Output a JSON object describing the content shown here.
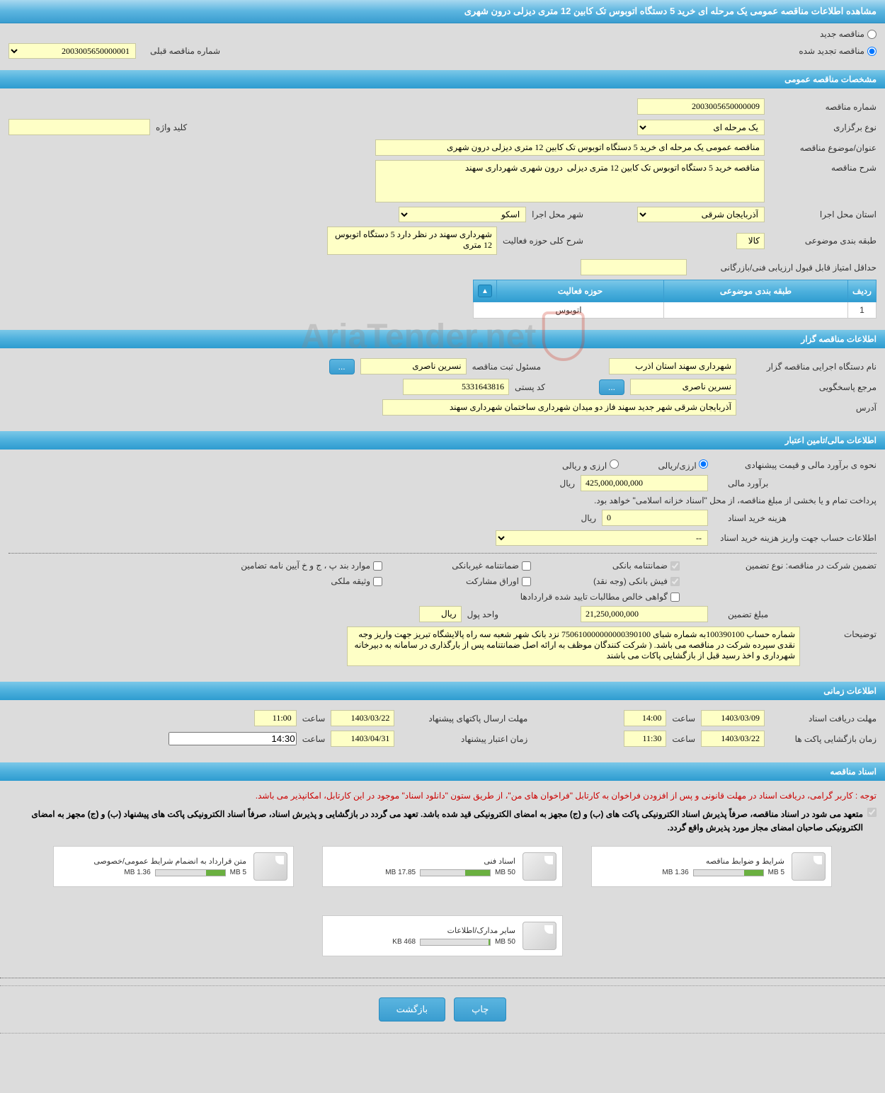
{
  "header": {
    "title": "مشاهده اطلاعات مناقصه عمومی یک مرحله ای خرید 5 دستگاه اتوبوس تک کابین 12 متری دیزلی درون شهری"
  },
  "tender_type": {
    "new_label": "مناقصه جدید",
    "renewed_label": "مناقصه تجدید شده",
    "prev_number_label": "شماره مناقصه قبلی",
    "prev_number": "2003005650000001"
  },
  "sections": {
    "general": "مشخصات مناقصه عمومی",
    "organizer": "اطلاعات مناقصه گزار",
    "financial": "اطلاعات مالی/تامین اعتبار",
    "time": "اطلاعات زمانی",
    "documents": "اسناد مناقصه",
    "activities_header": "حوزه های فعالیت"
  },
  "general": {
    "tender_no_label": "شماره مناقصه",
    "tender_no": "2003005650000009",
    "hold_type_label": "نوع برگزاری",
    "hold_type": "یک مرحله ای",
    "keyword_label": "کلید واژه",
    "keyword": "",
    "subject_label": "عنوان/موضوع مناقصه",
    "subject": "مناقصه عمومی یک مرحله ای خرید 5 دستگاه اتوبوس تک کابین 12 متری دیزلی درون شهری",
    "desc_label": "شرح مناقصه",
    "desc": "مناقصه خرید 5 دستگاه اتوبوس تک کابین 12 متری دیزلی  درون شهری شهرداری سهند",
    "province_label": "استان محل اجرا",
    "province": "آذربایجان شرقی",
    "city_label": "شهر محل اجرا",
    "city": "اسکو",
    "category_label": "طبقه بندی موضوعی",
    "category": "کالا",
    "activity_scope_label": "شرح کلی حوزه فعالیت",
    "activity_scope": "شهرداری سهند در نظر دارد 5 دستگاه اتوبوس 12 متری",
    "min_score_label": "حداقل امتیاز قابل قبول ارزیابی فنی/بازرگانی",
    "min_score": ""
  },
  "activity_table": {
    "col_row": "ردیف",
    "col_category": "طبقه بندی موضوعی",
    "col_scope": "حوزه فعالیت",
    "rows": [
      {
        "idx": "1",
        "category": "",
        "scope": "اتوبوس"
      }
    ]
  },
  "organizer": {
    "exec_label": "نام دستگاه اجرایی مناقصه گزار",
    "exec_name": "شهرداری سهند استان اذرب",
    "register_label": "مسئول ثبت مناقصه",
    "register_name": "نسرین ناصری",
    "responder_label": "مرجع پاسخگویی",
    "responder_name": "نسرین ناصری",
    "postal_label": "کد پستی",
    "postal": "5331643816",
    "address_label": "آدرس",
    "address": "آذربایجان شرقی شهر جدید سهند فاز دو میدان شهرداری ساختمان شهرداری سهند"
  },
  "financial": {
    "estimate_method_label": "نحوه ی برآورد مالی و قیمت پیشنهادی",
    "rial_label": "ارزی/ریالی",
    "currency_label": "ارزی و ریالی",
    "estimate_label": "برآورد مالی",
    "estimate": "425,000,000,000",
    "rial_unit": "ریال",
    "treasury_note": "پرداخت تمام و یا بخشی از مبلغ مناقصه، از محل \"اسناد خزانه اسلامی\" خواهد بود.",
    "doc_cost_label": "هزینه خرید اسناد",
    "doc_cost": "0",
    "account_label": "اطلاعات حساب جهت واریز هزینه خرید اسناد",
    "account": "--",
    "guarantee_type_label": "تضمین شرکت در مناقصه:    نوع تضمین",
    "g_bank": "ضمانتنامه بانکی",
    "g_nonbank": "ضمانتنامه غیربانکی",
    "g_bylaw": "موارد بند پ ، ج و خ آیین نامه تضامین",
    "g_receipt": "فیش بانکی (وجه نقد)",
    "g_participation": "اوراق مشارکت",
    "g_property": "وثیقه ملکی",
    "g_certificate": "گواهی خالص مطالبات تایید شده قراردادها",
    "guarantee_amount_label": "مبلغ تضمین",
    "guarantee_amount": "21,250,000,000",
    "currency_unit_label": "واحد پول",
    "currency_unit": "ریال",
    "notes_label": "توضیحات",
    "notes": "شماره حساب 100390100به شماره شبای 750610000000000390100 نزد بانک شهر شعبه سه راه پالایشگاه تبریز جهت واریز وجه نقدی سپرده شرکت در مناقصه می باشد. ( شرکت کنندگان موظف به ارائه اصل ضمانتنامه پس از بارگذاری در سامانه به دبیرخانه شهرداری و اخذ رسید قبل از بازگشایی پاکات می باشند"
  },
  "time": {
    "doc_deadline_label": "مهلت دریافت اسناد",
    "doc_deadline_date": "1403/03/09",
    "doc_deadline_time": "14:00",
    "time_label": "ساعت",
    "proposal_deadline_label": "مهلت ارسال پاکتهای پیشنهاد",
    "proposal_deadline_date": "1403/03/22",
    "proposal_deadline_time": "11:00",
    "opening_label": "زمان بازگشایی پاکت ها",
    "opening_date": "1403/03/22",
    "opening_time": "11:30",
    "validity_label": "زمان اعتبار پیشنهاد",
    "validity_date": "1403/04/31",
    "validity_time": "14:30"
  },
  "documents": {
    "note": "توجه : کاربر گرامی، دریافت اسناد در مهلت قانونی و پس از افزودن فراخوان به کارتابل \"فراخوان های من\"، از طریق ستون \"دانلود اسناد\" موجود در این کارتابل، امکانپذیر می باشد.",
    "note2": "متعهد می شود در اسناد مناقصه، صرفاً پذیرش اسناد الکترونیکی پاکت های (ب) و (ج) مجهز به امضای الکترونیکی قید شده باشد. تعهد می گردد در بازگشایی و پذیرش اسناد، صرفاً اسناد الکترونیکی پاکت های پیشنهاد (ب) و (ج) مجهز به امضای الکترونیکی صاحبان امضای مجاز مورد پذیرش واقع گردد.",
    "items": [
      {
        "title": "شرایط و ضوابط مناقصه",
        "size": "1.36 MB",
        "limit": "5 MB",
        "fill": 27
      },
      {
        "title": "اسناد فنی",
        "size": "17.85 MB",
        "limit": "50 MB",
        "fill": 36
      },
      {
        "title": "متن قرارداد به انضمام شرایط عمومی/خصوصی",
        "size": "1.36 MB",
        "limit": "5 MB",
        "fill": 27
      },
      {
        "title": "سایر مدارک/اطلاعات",
        "size": "468 KB",
        "limit": "50 MB",
        "fill": 2
      }
    ]
  },
  "buttons": {
    "print": "چاپ",
    "back": "بازگشت",
    "dots": "..."
  },
  "watermark": "AriaTender.net"
}
